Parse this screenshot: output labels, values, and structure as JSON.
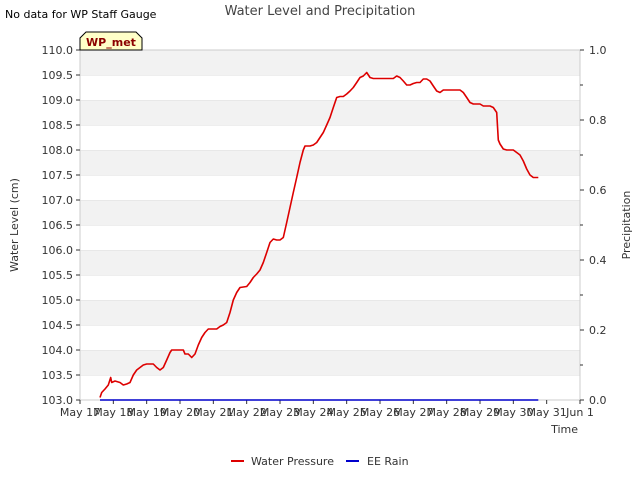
{
  "chart_data": {
    "type": "line",
    "title": "Water Level and Precipitation",
    "note": "No data for WP Staff Gauge",
    "station_label": "WP_met",
    "xlabel": "Time",
    "ylabel_left": "Water Level (cm)",
    "ylabel_right": "Precipitation",
    "ylim_left": [
      103.0,
      110.0
    ],
    "ylim_right": [
      0.0,
      1.0
    ],
    "xlim": [
      0,
      15
    ],
    "x_ticks": [
      {
        "value": 0,
        "label": "May 17"
      },
      {
        "value": 1,
        "label": "May 18"
      },
      {
        "value": 2,
        "label": "May 19"
      },
      {
        "value": 3,
        "label": "May 20"
      },
      {
        "value": 4,
        "label": "May 21"
      },
      {
        "value": 5,
        "label": "May 22"
      },
      {
        "value": 6,
        "label": "May 23"
      },
      {
        "value": 7,
        "label": "May 24"
      },
      {
        "value": 8,
        "label": "May 25"
      },
      {
        "value": 9,
        "label": "May 26"
      },
      {
        "value": 10,
        "label": "May 27"
      },
      {
        "value": 11,
        "label": "May 28"
      },
      {
        "value": 12,
        "label": "May 29"
      },
      {
        "value": 13,
        "label": "May 30"
      },
      {
        "value": 14,
        "label": "May 31"
      },
      {
        "value": 15,
        "label": "Jun 1"
      }
    ],
    "y_ticks_left": [
      "103.0",
      "103.5",
      "104.0",
      "104.5",
      "105.0",
      "105.5",
      "106.0",
      "106.5",
      "107.0",
      "107.5",
      "108.0",
      "108.5",
      "109.0",
      "109.5",
      "110.0"
    ],
    "y_ticks_right": [
      "0.0",
      "0.2",
      "0.4",
      "0.6",
      "0.8",
      "1.0"
    ],
    "grid": true,
    "legend_position": "bottom-center",
    "series": [
      {
        "name": "Water Pressure",
        "color": "#dd0000",
        "axis": "left",
        "points": [
          [
            0.6,
            103.05
          ],
          [
            0.65,
            103.15
          ],
          [
            0.75,
            103.22
          ],
          [
            0.85,
            103.3
          ],
          [
            0.92,
            103.45
          ],
          [
            0.95,
            103.35
          ],
          [
            1.05,
            103.38
          ],
          [
            1.2,
            103.35
          ],
          [
            1.3,
            103.3
          ],
          [
            1.4,
            103.32
          ],
          [
            1.5,
            103.35
          ],
          [
            1.6,
            103.5
          ],
          [
            1.7,
            103.6
          ],
          [
            1.8,
            103.65
          ],
          [
            1.9,
            103.7
          ],
          [
            2.0,
            103.72
          ],
          [
            2.1,
            103.72
          ],
          [
            2.2,
            103.72
          ],
          [
            2.3,
            103.65
          ],
          [
            2.4,
            103.6
          ],
          [
            2.5,
            103.65
          ],
          [
            2.6,
            103.8
          ],
          [
            2.7,
            103.95
          ],
          [
            2.75,
            104.0
          ],
          [
            2.9,
            104.0
          ],
          [
            3.0,
            104.0
          ],
          [
            3.1,
            104.0
          ],
          [
            3.15,
            103.92
          ],
          [
            3.25,
            103.92
          ],
          [
            3.35,
            103.85
          ],
          [
            3.45,
            103.92
          ],
          [
            3.55,
            104.1
          ],
          [
            3.65,
            104.25
          ],
          [
            3.75,
            104.35
          ],
          [
            3.85,
            104.42
          ],
          [
            4.0,
            104.42
          ],
          [
            4.1,
            104.42
          ],
          [
            4.2,
            104.47
          ],
          [
            4.3,
            104.5
          ],
          [
            4.4,
            104.55
          ],
          [
            4.5,
            104.75
          ],
          [
            4.6,
            105.0
          ],
          [
            4.7,
            105.15
          ],
          [
            4.8,
            105.25
          ],
          [
            4.9,
            105.26
          ],
          [
            5.0,
            105.27
          ],
          [
            5.1,
            105.35
          ],
          [
            5.2,
            105.45
          ],
          [
            5.3,
            105.52
          ],
          [
            5.4,
            105.6
          ],
          [
            5.5,
            105.75
          ],
          [
            5.6,
            105.95
          ],
          [
            5.7,
            106.15
          ],
          [
            5.8,
            106.22
          ],
          [
            5.9,
            106.2
          ],
          [
            6.0,
            106.2
          ],
          [
            6.1,
            106.25
          ],
          [
            6.2,
            106.55
          ],
          [
            6.3,
            106.85
          ],
          [
            6.4,
            107.15
          ],
          [
            6.5,
            107.45
          ],
          [
            6.6,
            107.75
          ],
          [
            6.7,
            108.0
          ],
          [
            6.75,
            108.08
          ],
          [
            6.9,
            108.08
          ],
          [
            7.0,
            108.1
          ],
          [
            7.1,
            108.15
          ],
          [
            7.2,
            108.25
          ],
          [
            7.3,
            108.35
          ],
          [
            7.4,
            108.5
          ],
          [
            7.5,
            108.65
          ],
          [
            7.6,
            108.85
          ],
          [
            7.7,
            109.05
          ],
          [
            7.8,
            109.07
          ],
          [
            7.9,
            109.07
          ],
          [
            8.0,
            109.12
          ],
          [
            8.1,
            109.18
          ],
          [
            8.2,
            109.25
          ],
          [
            8.3,
            109.35
          ],
          [
            8.4,
            109.45
          ],
          [
            8.5,
            109.48
          ],
          [
            8.6,
            109.55
          ],
          [
            8.7,
            109.45
          ],
          [
            8.8,
            109.43
          ],
          [
            8.9,
            109.43
          ],
          [
            9.0,
            109.43
          ],
          [
            9.2,
            109.43
          ],
          [
            9.4,
            109.43
          ],
          [
            9.5,
            109.48
          ],
          [
            9.6,
            109.45
          ],
          [
            9.7,
            109.38
          ],
          [
            9.8,
            109.3
          ],
          [
            9.9,
            109.3
          ],
          [
            10.0,
            109.33
          ],
          [
            10.1,
            109.35
          ],
          [
            10.2,
            109.35
          ],
          [
            10.3,
            109.42
          ],
          [
            10.4,
            109.42
          ],
          [
            10.5,
            109.38
          ],
          [
            10.6,
            109.28
          ],
          [
            10.7,
            109.18
          ],
          [
            10.8,
            109.15
          ],
          [
            10.9,
            109.2
          ],
          [
            11.0,
            109.2
          ],
          [
            11.2,
            109.2
          ],
          [
            11.4,
            109.2
          ],
          [
            11.5,
            109.15
          ],
          [
            11.6,
            109.05
          ],
          [
            11.7,
            108.95
          ],
          [
            11.8,
            108.92
          ],
          [
            11.9,
            108.92
          ],
          [
            12.0,
            108.92
          ],
          [
            12.1,
            108.88
          ],
          [
            12.2,
            108.88
          ],
          [
            12.3,
            108.88
          ],
          [
            12.4,
            108.85
          ],
          [
            12.5,
            108.75
          ],
          [
            12.55,
            108.2
          ],
          [
            12.6,
            108.12
          ],
          [
            12.7,
            108.02
          ],
          [
            12.8,
            108.0
          ],
          [
            12.9,
            108.0
          ],
          [
            13.0,
            108.0
          ],
          [
            13.1,
            107.95
          ],
          [
            13.2,
            107.9
          ],
          [
            13.3,
            107.78
          ],
          [
            13.4,
            107.62
          ],
          [
            13.5,
            107.5
          ],
          [
            13.6,
            107.45
          ],
          [
            13.7,
            107.45
          ],
          [
            13.75,
            107.45
          ]
        ]
      },
      {
        "name": "EE Rain",
        "color": "#0000cc",
        "axis": "right",
        "points": [
          [
            0.6,
            0.0
          ],
          [
            13.75,
            0.0
          ]
        ]
      }
    ]
  }
}
